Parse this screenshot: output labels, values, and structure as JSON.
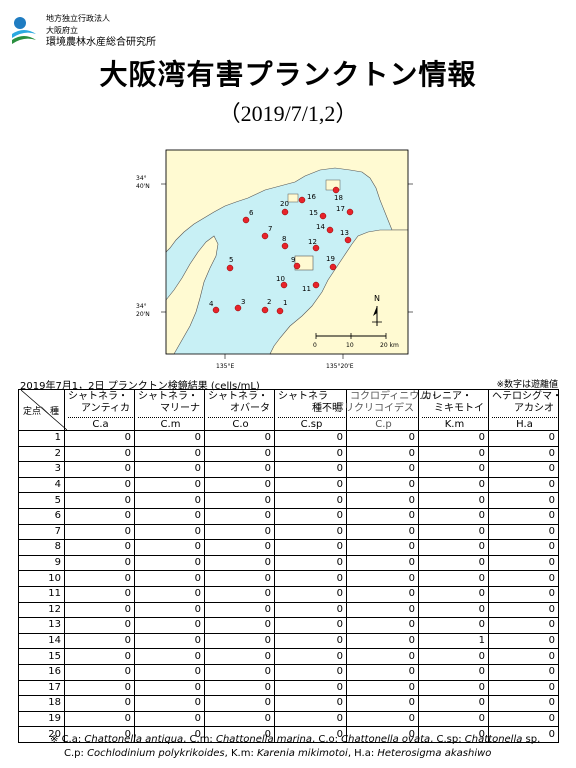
{
  "org": {
    "line1": "地方独立行政法人",
    "line2": "大阪府立",
    "line3": "環境農林水産総合研究所"
  },
  "title": "大阪湾有害プランクトン情報",
  "subtitle": "（2019/7/1,2）",
  "map": {
    "lat_labels": [
      {
        "deg": "34°",
        "min": "40'N"
      },
      {
        "deg": "34°",
        "min": "20'N"
      }
    ],
    "lon_labels": [
      "135°E",
      "135°20'E"
    ],
    "north_label": "N",
    "scale_labels": [
      "0",
      "10",
      "20 km"
    ],
    "station_colors": {
      "fill": "#e8232a",
      "stroke": "#8b0000"
    },
    "sea_color": "#c8f0f5",
    "land_color": "#fffad2",
    "stations": [
      "1",
      "2",
      "3",
      "4",
      "5",
      "6",
      "7",
      "8",
      "9",
      "10",
      "11",
      "12",
      "13",
      "14",
      "15",
      "16",
      "17",
      "18",
      "19",
      "20"
    ]
  },
  "table": {
    "caption": "2019年7月1，2日  プランクトン検鏡結果 (cells/mL)",
    "note": "※数字は遊離値",
    "corner_left": "定点＼種",
    "columns": [
      {
        "n1": "シャトネラ・",
        "n2": "アンティカ",
        "abbr": "C.a"
      },
      {
        "n1": "シャトネラ・",
        "n2": "マリーナ",
        "abbr": "C.m"
      },
      {
        "n1": "シャトネラ・",
        "n2": "オバータ",
        "abbr": "C.o"
      },
      {
        "n1": "シャトネラ",
        "n2": "種不明",
        "abbr": "C.sp"
      },
      {
        "n1": "コクロディニウム・",
        "n2": "ポリクリコイデス",
        "abbr": "C.p"
      },
      {
        "n1": "カレニア・",
        "n2": "ミキモトイ",
        "abbr": "K.m"
      },
      {
        "n1": "ヘテロシグマ・",
        "n2": "アカシオ",
        "abbr": "H.a"
      }
    ],
    "rows": [
      {
        "st": "1",
        "v": [
          "0",
          "0",
          "0",
          "0",
          "0",
          "0",
          "0"
        ]
      },
      {
        "st": "2",
        "v": [
          "0",
          "0",
          "0",
          "0",
          "0",
          "0",
          "0"
        ]
      },
      {
        "st": "3",
        "v": [
          "0",
          "0",
          "0",
          "0",
          "0",
          "0",
          "0"
        ]
      },
      {
        "st": "4",
        "v": [
          "0",
          "0",
          "0",
          "0",
          "0",
          "0",
          "0"
        ]
      },
      {
        "st": "5",
        "v": [
          "0",
          "0",
          "0",
          "0",
          "0",
          "0",
          "0"
        ]
      },
      {
        "st": "6",
        "v": [
          "0",
          "0",
          "0",
          "0",
          "0",
          "0",
          "0"
        ]
      },
      {
        "st": "7",
        "v": [
          "0",
          "0",
          "0",
          "0",
          "0",
          "0",
          "0"
        ]
      },
      {
        "st": "8",
        "v": [
          "0",
          "0",
          "0",
          "0",
          "0",
          "0",
          "0"
        ]
      },
      {
        "st": "9",
        "v": [
          "0",
          "0",
          "0",
          "0",
          "0",
          "0",
          "0"
        ]
      },
      {
        "st": "10",
        "v": [
          "0",
          "0",
          "0",
          "0",
          "0",
          "0",
          "0"
        ]
      },
      {
        "st": "11",
        "v": [
          "0",
          "0",
          "0",
          "0",
          "0",
          "0",
          "0"
        ]
      },
      {
        "st": "12",
        "v": [
          "0",
          "0",
          "0",
          "0",
          "0",
          "0",
          "0"
        ]
      },
      {
        "st": "13",
        "v": [
          "0",
          "0",
          "0",
          "0",
          "0",
          "0",
          "0"
        ]
      },
      {
        "st": "14",
        "v": [
          "0",
          "0",
          "0",
          "0",
          "0",
          "1",
          "0"
        ]
      },
      {
        "st": "15",
        "v": [
          "0",
          "0",
          "0",
          "0",
          "0",
          "0",
          "0"
        ]
      },
      {
        "st": "16",
        "v": [
          "0",
          "0",
          "0",
          "0",
          "0",
          "0",
          "0"
        ]
      },
      {
        "st": "17",
        "v": [
          "0",
          "0",
          "0",
          "0",
          "0",
          "0",
          "0"
        ]
      },
      {
        "st": "18",
        "v": [
          "0",
          "0",
          "0",
          "0",
          "0",
          "0",
          "0"
        ]
      },
      {
        "st": "19",
        "v": [
          "0",
          "0",
          "0",
          "0",
          "0",
          "0",
          "0"
        ]
      },
      {
        "st": "20",
        "v": [
          "0",
          "0",
          "0",
          "0",
          "0",
          "0",
          "0"
        ]
      }
    ]
  },
  "footnote": {
    "mark": "※",
    "line1": [
      {
        "t": "C.a: "
      },
      {
        "t": "Chattonella antiqua",
        "i": true
      },
      {
        "t": ", C.m: "
      },
      {
        "t": "Chattonella marina",
        "i": true
      },
      {
        "t": ", C.o: "
      },
      {
        "t": "Chattonella ovata",
        "i": true
      },
      {
        "t": ", C.sp: "
      },
      {
        "t": "Chattonella",
        "i": true
      },
      {
        "t": " sp."
      }
    ],
    "line2": [
      {
        "t": "C.p: "
      },
      {
        "t": "Cochlodinium polykrikoides",
        "i": true
      },
      {
        "t": ",  K.m: "
      },
      {
        "t": "Karenia mikimotoi",
        "i": true
      },
      {
        "t": ",  H.a: "
      },
      {
        "t": "Heterosigma akashiwo",
        "i": true
      }
    ]
  }
}
